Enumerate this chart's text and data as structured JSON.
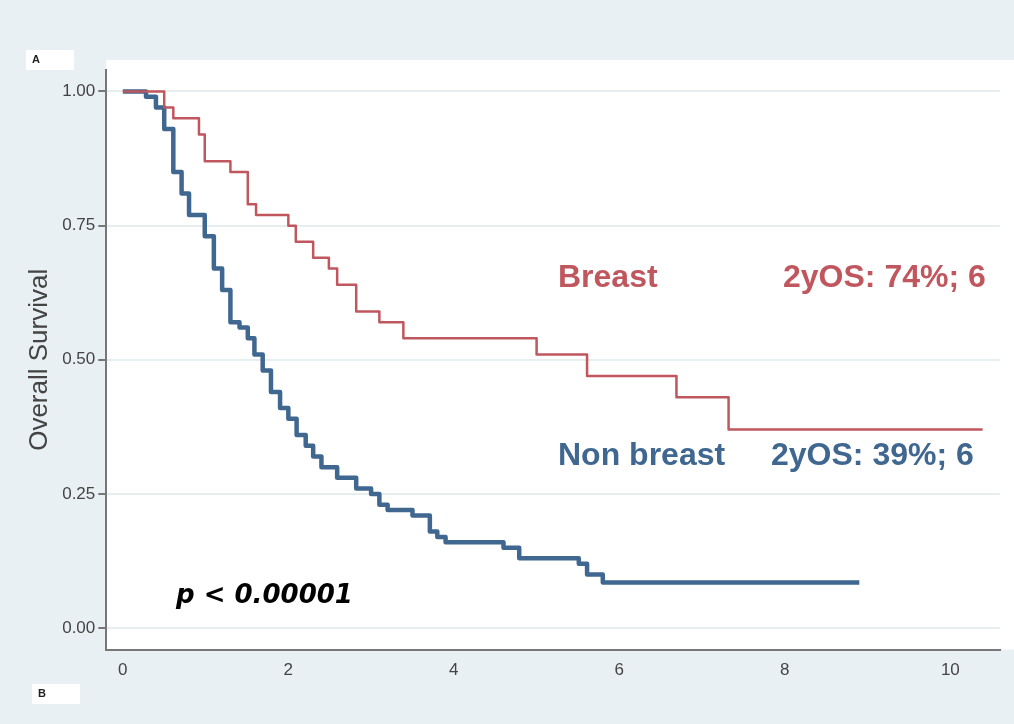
{
  "chart_data": {
    "type": "step",
    "ylabel": "Overall Survival",
    "xlim": [
      -0.2,
      10.6
    ],
    "xticks": [
      0,
      2,
      4,
      6,
      8,
      10
    ],
    "ylim": [
      -0.04,
      1.04
    ],
    "yticks": [
      {
        "value": 0,
        "label": "0.00"
      },
      {
        "value": 0.25,
        "label": "0.25"
      },
      {
        "value": 0.5,
        "label": "0.50"
      },
      {
        "value": 0.75,
        "label": "0.75"
      },
      {
        "value": 1,
        "label": "1.00"
      }
    ],
    "grid": "y",
    "legend": false,
    "marker": "none",
    "line_style": "solid",
    "series": [
      {
        "name": "Breast",
        "color": "#c0575e",
        "x": [
          0,
          0.5,
          0.61,
          0.92,
          0.99,
          1.3,
          1.51,
          1.61,
          2.0,
          2.09,
          2.3,
          2.49,
          2.59,
          2.82,
          3.1,
          3.39,
          5.0,
          5.61,
          6.69,
          7.32,
          10.39
        ],
        "values": [
          1,
          0.97,
          0.95,
          0.92,
          0.87,
          0.85,
          0.79,
          0.77,
          0.75,
          0.72,
          0.69,
          0.67,
          0.64,
          0.59,
          0.57,
          0.54,
          0.51,
          0.47,
          0.43,
          0.37,
          0.37
        ]
      },
      {
        "name": "Non breast",
        "color": "#3f6790",
        "x": [
          0,
          0.28,
          0.4,
          0.5,
          0.61,
          0.71,
          0.8,
          0.99,
          1.1,
          1.2,
          1.3,
          1.41,
          1.51,
          1.59,
          1.69,
          1.79,
          1.9,
          2.0,
          2.1,
          2.21,
          2.3,
          2.4,
          2.59,
          2.82,
          3.0,
          3.1,
          3.2,
          3.5,
          3.71,
          3.8,
          3.9,
          4.6,
          4.79,
          5.51,
          5.61,
          5.8,
          8.9
        ],
        "values": [
          1,
          0.99,
          0.97,
          0.93,
          0.85,
          0.81,
          0.77,
          0.73,
          0.67,
          0.63,
          0.57,
          0.56,
          0.54,
          0.51,
          0.48,
          0.44,
          0.41,
          0.39,
          0.36,
          0.34,
          0.32,
          0.3,
          0.28,
          0.26,
          0.25,
          0.23,
          0.22,
          0.21,
          0.18,
          0.17,
          0.16,
          0.15,
          0.13,
          0.12,
          0.1,
          0.085,
          0.085
        ]
      }
    ],
    "annotations": [
      "A",
      "B",
      "p < 0.00001",
      "2yOS: 74%; 6",
      "2yOS: 39%; 6"
    ]
  }
}
